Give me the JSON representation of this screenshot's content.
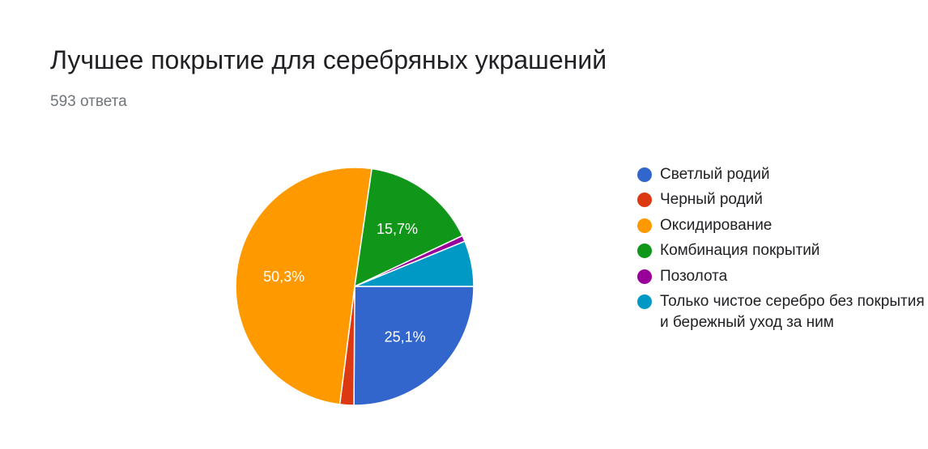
{
  "header": {
    "title": "Лучшее покрытие для серебряных украшений",
    "subtitle": "593 ответа"
  },
  "chart_data": {
    "type": "pie",
    "slices": [
      {
        "label": "Светлый родий",
        "value": 25.1,
        "color": "#3366cc",
        "data_label": "25,1%"
      },
      {
        "label": "Черный родий",
        "value": 1.9,
        "color": "#dc3912",
        "data_label": ""
      },
      {
        "label": "Оксидирование",
        "value": 50.3,
        "color": "#ff9900",
        "data_label": "50,3%"
      },
      {
        "label": "Комбинация покрытий",
        "value": 15.7,
        "color": "#109618",
        "data_label": "15,7%"
      },
      {
        "label": "Позолота",
        "value": 0.8,
        "color": "#990099",
        "data_label": ""
      },
      {
        "label": "Только чистое серебро без покрытия и бережный уход за ним",
        "value": 6.2,
        "color": "#0099c6",
        "data_label": ""
      }
    ],
    "legend_position": "right",
    "start_angle": "3 o'clock",
    "direction": "clockwise"
  }
}
